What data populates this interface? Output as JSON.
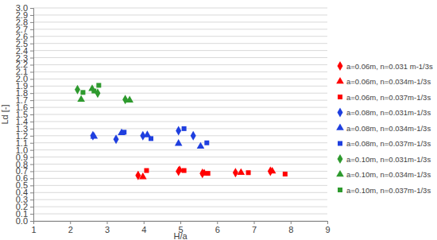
{
  "chart_data": {
    "type": "scatter",
    "x_label": "H/a",
    "y_label": "Ld [-]",
    "xlim": [
      1,
      9
    ],
    "xticks": [
      1,
      2,
      3,
      4,
      5,
      6,
      7,
      8,
      9
    ],
    "ylim": [
      0,
      3
    ],
    "yticks": [
      {
        "value": 0,
        "label": "0.0"
      },
      0.1,
      0.2,
      0.3,
      0.4,
      0.5,
      0.6,
      0.7,
      0.8,
      0.9,
      {
        "value": 1,
        "label": "1.0"
      },
      1.1,
      1.2,
      1.3,
      1.4,
      1.5,
      1.6,
      1.7,
      1.8,
      1.9,
      {
        "value": 2,
        "label": "2.0"
      },
      2.1,
      2.2,
      2.3,
      2.4,
      2.5,
      2.6,
      2.7,
      2.8,
      2.9,
      {
        "value": 3,
        "label": "3.0"
      }
    ],
    "grid": "y",
    "legend": "right",
    "series": [
      {
        "name": "a=0.06m, n=0.031 m-1/3s",
        "color": "#ff0000",
        "marker": "diamond",
        "x": [
          3.85,
          4.95,
          5.6,
          6.5,
          7.45
        ],
        "values": [
          0.64,
          0.7,
          0.67,
          0.68,
          0.7
        ]
      },
      {
        "name": "a=0.06m, n=0.034m-1/3s",
        "color": "#ff0000",
        "marker": "triangle",
        "x": [
          3.98,
          4.98,
          5.65,
          6.65,
          7.5
        ],
        "values": [
          0.62,
          0.72,
          0.67,
          0.68,
          0.7
        ]
      },
      {
        "name": "a=0.06m, n=0.037m-1/3s",
        "color": "#ff0000",
        "marker": "square",
        "x": [
          4.08,
          5.1,
          5.75,
          6.85,
          7.85
        ],
        "values": [
          0.71,
          0.71,
          0.67,
          0.68,
          0.66
        ]
      },
      {
        "name": "a=0.08m, n=0.031m-1/3s",
        "color": "#1f3fdf",
        "marker": "diamond",
        "x": [
          2.62,
          3.25,
          3.98,
          4.95,
          5.35
        ],
        "values": [
          1.2,
          1.15,
          1.2,
          1.27,
          1.2
        ]
      },
      {
        "name": "a=0.08m, n=0.034m-1/3s",
        "color": "#1f3fdf",
        "marker": "triangle",
        "x": [
          2.65,
          3.4,
          4.1,
          4.95,
          5.55
        ],
        "values": [
          1.19,
          1.24,
          1.21,
          1.09,
          1.05
        ]
      },
      {
        "name": "a=0.08m, n=0.037m-1/3s",
        "color": "#1f3fdf",
        "marker": "square",
        "x": [
          3.47,
          4.2,
          5.1,
          5.72
        ],
        "values": [
          1.25,
          1.16,
          1.3,
          1.1
        ]
      },
      {
        "name": "a=0.10m, n=0.031m-1/3s",
        "color": "#2e9a2e",
        "marker": "diamond",
        "x": [
          2.2,
          2.75,
          3.5
        ],
        "values": [
          1.85,
          1.8,
          1.71
        ]
      },
      {
        "name": "a=0.10m, n=0.034m-1/3s",
        "color": "#2e9a2e",
        "marker": "triangle",
        "x": [
          2.3,
          2.6,
          3.62
        ],
        "values": [
          1.71,
          1.86,
          1.7
        ]
      },
      {
        "name": "a=0.10m, n=0.037m-1/3s",
        "color": "#2e9a2e",
        "marker": "square",
        "x": [
          2.35,
          2.65,
          2.78
        ],
        "values": [
          1.81,
          1.83,
          1.91
        ]
      }
    ]
  }
}
